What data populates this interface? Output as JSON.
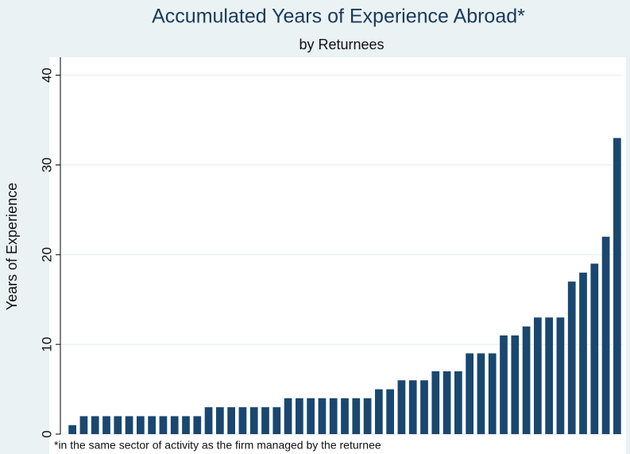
{
  "chart_data": {
    "type": "bar",
    "title": "Accumulated Years of Experience Abroad*",
    "subtitle": "by Returnees",
    "y_label": "Years of Experience",
    "note": "*in the same sector of activity as the firm managed by the returnee",
    "values": [
      1,
      2,
      2,
      2,
      2,
      2,
      2,
      2,
      2,
      2,
      2,
      2,
      3,
      3,
      3,
      3,
      3,
      3,
      3,
      4,
      4,
      4,
      4,
      4,
      4,
      4,
      4,
      5,
      5,
      6,
      6,
      6,
      7,
      7,
      7,
      9,
      9,
      9,
      11,
      11,
      12,
      13,
      13,
      13,
      17,
      18,
      19,
      22,
      33
    ],
    "color": "#1a476f",
    "ylim": [
      0,
      42
    ],
    "yticks": [
      0,
      10,
      20,
      30,
      40
    ],
    "grid": true
  }
}
